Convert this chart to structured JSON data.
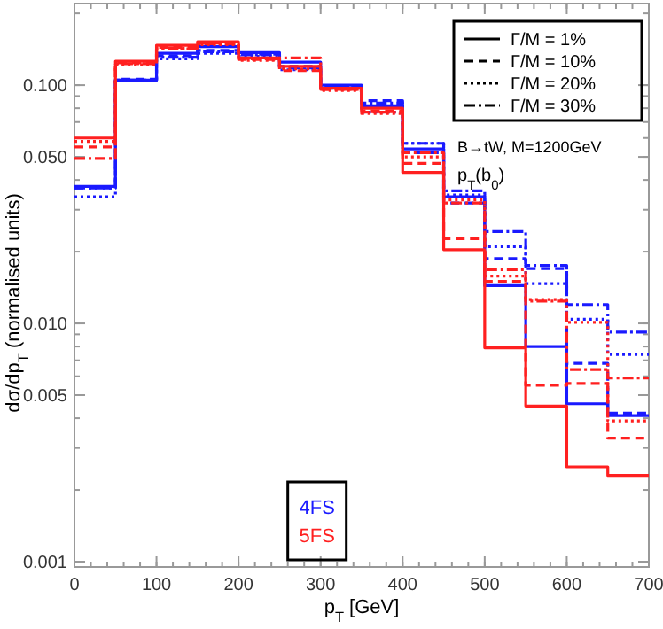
{
  "chart_data": {
    "type": "step",
    "xlabel": "p$_{T}$ [GeV]",
    "ylabel": "dσ/dp$_{T}$ (normalised units)",
    "x": [
      0,
      50,
      100,
      150,
      200,
      250,
      300,
      350,
      400,
      450,
      500,
      550,
      600,
      650,
      700
    ],
    "xlim": [
      0,
      700
    ],
    "xticks": [
      0,
      100,
      200,
      300,
      400,
      500,
      600,
      700
    ],
    "ylim": [
      0.00095,
      0.22
    ],
    "yticks": [
      {
        "value": 0.001,
        "label": "0.001"
      },
      {
        "value": 0.005,
        "label": "0.005"
      },
      {
        "value": 0.01,
        "label": "0.010"
      },
      {
        "value": 0.05,
        "label": "0.050"
      },
      {
        "value": 0.1,
        "label": "0.100"
      }
    ],
    "log": "y",
    "grid": false,
    "series": [
      {
        "color": "#1a1aff",
        "line_style": "solid",
        "values": [
          0.0376,
          0.105,
          0.136,
          0.145,
          0.137,
          0.125,
          0.1,
          0.082,
          0.054,
          0.034,
          0.0144,
          0.008,
          0.0046,
          0.0041,
          0.0041
        ]
      },
      {
        "color": "#1a1aff",
        "line_style": "dashed",
        "values": [
          0.037,
          0.106,
          0.133,
          0.14,
          0.135,
          0.12,
          0.099,
          0.086,
          0.052,
          0.032,
          0.0187,
          0.017,
          0.0068,
          0.0042,
          0.0042
        ]
      },
      {
        "color": "#1a1aff",
        "line_style": "dotted",
        "values": [
          0.034,
          0.104,
          0.129,
          0.136,
          0.132,
          0.116,
          0.097,
          0.077,
          0.057,
          0.0346,
          0.021,
          0.0147,
          0.0104,
          0.0074,
          0.0074
        ]
      },
      {
        "color": "#1a1aff",
        "line_style": "dashdot",
        "values": [
          0.037,
          0.105,
          0.131,
          0.138,
          0.134,
          0.118,
          0.098,
          0.084,
          0.057,
          0.036,
          0.0243,
          0.0175,
          0.012,
          0.0092,
          0.0092
        ]
      },
      {
        "color": "#ff2020",
        "line_style": "solid",
        "values": [
          0.06,
          0.126,
          0.147,
          0.152,
          0.13,
          0.12,
          0.097,
          0.08,
          0.043,
          0.0204,
          0.0079,
          0.0045,
          0.0025,
          0.0023,
          0.0023
        ]
      },
      {
        "color": "#ff2020",
        "line_style": "dashed",
        "values": [
          0.055,
          0.124,
          0.144,
          0.15,
          0.128,
          0.115,
          0.096,
          0.078,
          0.047,
          0.0227,
          0.015,
          0.0055,
          0.0056,
          0.0033,
          0.0033
        ]
      },
      {
        "color": "#ff2020",
        "line_style": "dotted",
        "values": [
          0.058,
          0.122,
          0.142,
          0.148,
          0.127,
          0.117,
          0.095,
          0.076,
          0.05,
          0.033,
          0.0158,
          0.0126,
          0.0101,
          0.0039,
          0.0039
        ]
      },
      {
        "color": "#ff2020",
        "line_style": "dashdot",
        "values": [
          0.0492,
          0.123,
          0.143,
          0.149,
          0.129,
          0.13,
          0.096,
          0.077,
          0.052,
          0.032,
          0.0168,
          0.0124,
          0.0064,
          0.0059,
          0.0059
        ]
      }
    ],
    "annotations": [
      "Γ/M = 1%",
      "Γ/M = 10%",
      "Γ/M = 20%",
      "Γ/M = 30%",
      "4FS",
      "5FS",
      "B→tW, M=1200GeV",
      "p$_{T}$(b$_{0}$)"
    ]
  }
}
